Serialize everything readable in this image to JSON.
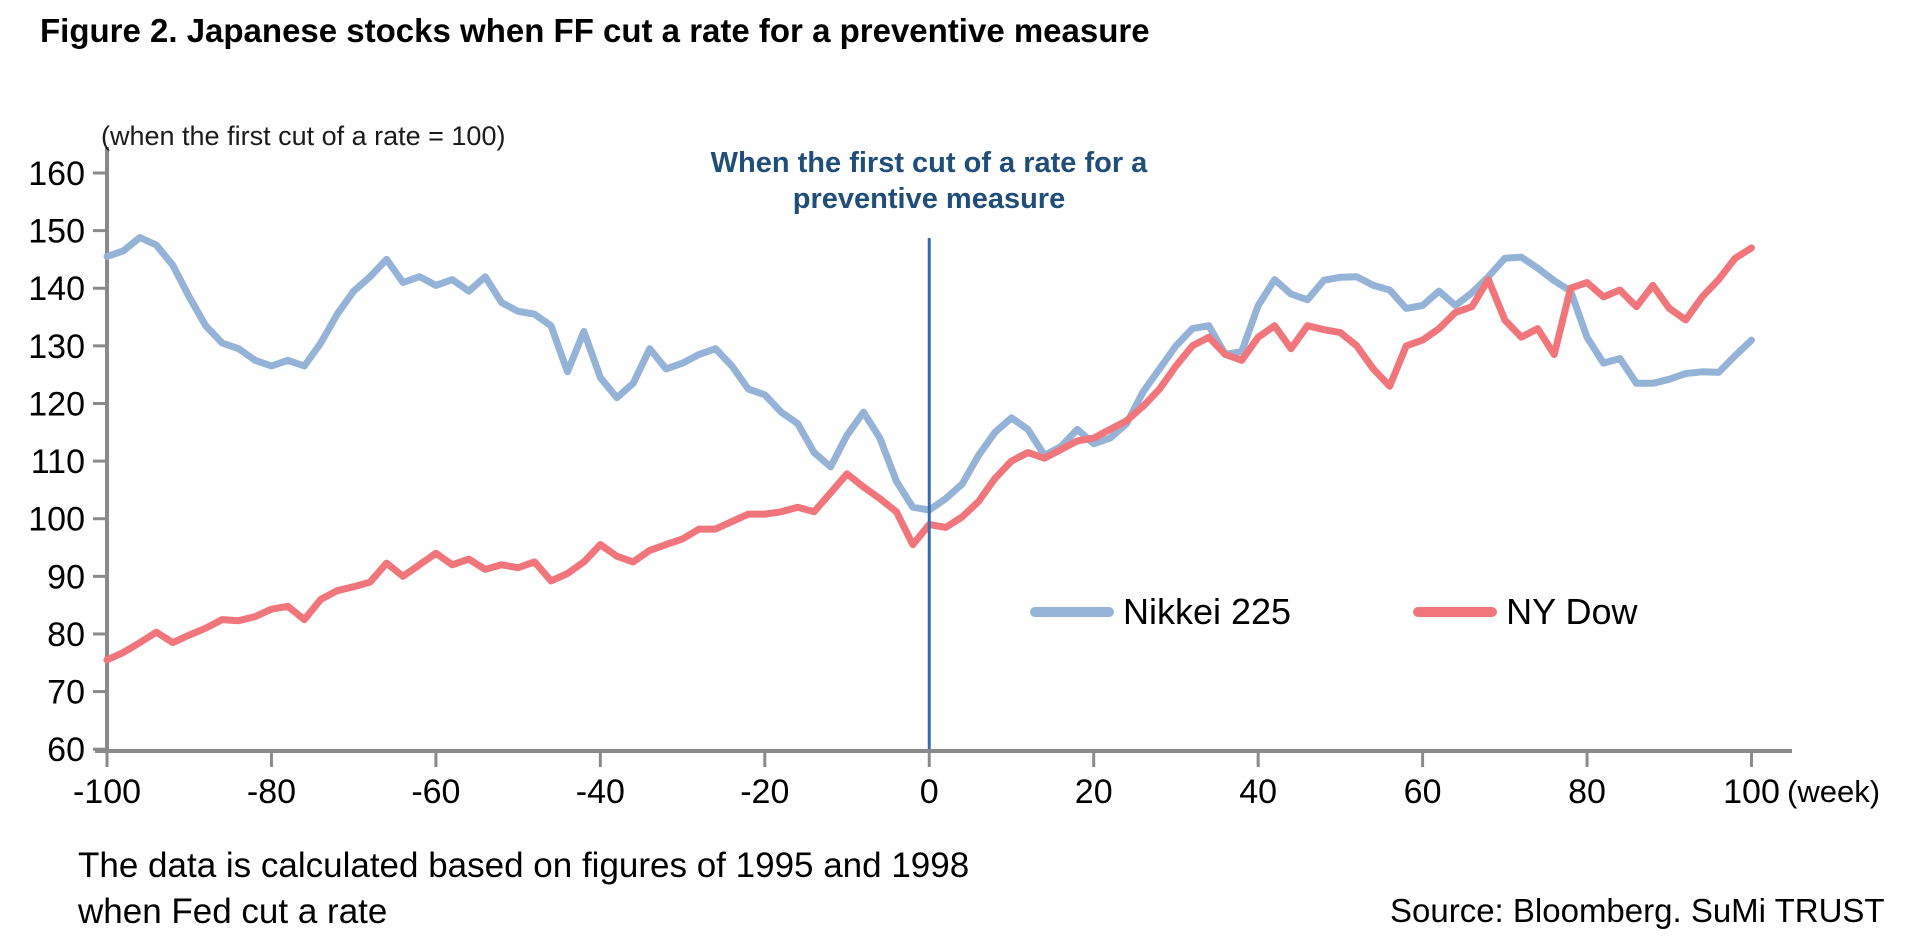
{
  "title": "Figure 2. Japanese stocks when FF cut a rate for a preventive measure",
  "axis_note": "(when the first cut of a rate  = 100)",
  "annotation": {
    "line1": "When the first cut of a rate for a",
    "line2": "preventive measure",
    "color": "#1F4E79"
  },
  "legend": {
    "items": [
      {
        "label": "Nikkei 225",
        "color": "#95B3D7"
      },
      {
        "label": "NY Dow",
        "color": "#F1767C"
      }
    ]
  },
  "footnote": {
    "line1": "The data is calculated based on figures of 1995 and 1998",
    "line2": "when Fed cut a rate"
  },
  "source": "Source: Bloomberg. SuMi TRUST",
  "chart_data": {
    "type": "line",
    "title": "Figure 2. Japanese stocks when FF cut a rate for a preventive measure",
    "xlabel": "(week)",
    "ylabel": "(when the first cut of a rate = 100)",
    "xlim": [
      -100,
      100
    ],
    "ylim": [
      60,
      160
    ],
    "grid": false,
    "legend_position": "inside-center-right",
    "axis_color": "#8A8A8A",
    "event_line_x": 0,
    "event_line_color": "#3B6CA8",
    "y_ticks": [
      160,
      150,
      140,
      130,
      120,
      110,
      100,
      90,
      80,
      70,
      60
    ],
    "x_ticks": [
      -100,
      -80,
      -60,
      -40,
      -20,
      0,
      20,
      40,
      60,
      80,
      100
    ],
    "x": [
      -100,
      -98,
      -96,
      -94,
      -92,
      -90,
      -88,
      -86,
      -84,
      -82,
      -80,
      -78,
      -76,
      -74,
      -72,
      -70,
      -68,
      -66,
      -64,
      -62,
      -60,
      -58,
      -56,
      -54,
      -52,
      -50,
      -48,
      -46,
      -44,
      -42,
      -40,
      -38,
      -36,
      -34,
      -32,
      -30,
      -28,
      -26,
      -24,
      -22,
      -20,
      -18,
      -16,
      -14,
      -12,
      -10,
      -8,
      -6,
      -4,
      -2,
      0,
      2,
      4,
      6,
      8,
      10,
      12,
      14,
      16,
      18,
      20,
      22,
      24,
      26,
      28,
      30,
      32,
      34,
      36,
      38,
      40,
      42,
      44,
      46,
      48,
      50,
      52,
      54,
      56,
      58,
      60,
      62,
      64,
      66,
      68,
      70,
      72,
      74,
      76,
      78,
      80,
      82,
      84,
      86,
      88,
      90,
      92,
      94,
      96,
      98,
      100
    ],
    "series": [
      {
        "name": "Nikkei 225",
        "color": "#95B3D7",
        "values": [
          145.5,
          146.5,
          148.8,
          147.5,
          144.0,
          138.5,
          133.5,
          130.5,
          129.5,
          127.5,
          126.5,
          127.5,
          126.5,
          130.5,
          135.5,
          139.5,
          142.0,
          145.0,
          141.0,
          142.0,
          140.5,
          141.5,
          139.5,
          142.0,
          137.5,
          136.0,
          135.5,
          133.5,
          125.5,
          132.5,
          124.5,
          121.0,
          123.5,
          129.5,
          126.0,
          127.0,
          128.5,
          129.5,
          126.5,
          122.5,
          121.5,
          118.5,
          116.5,
          111.5,
          109.0,
          114.5,
          118.5,
          114.0,
          106.5,
          102.0,
          101.5,
          103.5,
          106.0,
          111.0,
          115.0,
          117.5,
          115.5,
          111.0,
          112.5,
          115.5,
          113.0,
          114.0,
          116.5,
          122.0,
          126.0,
          130.0,
          133.0,
          133.5,
          128.5,
          129.0,
          137.0,
          141.5,
          139.0,
          138.0,
          141.4,
          141.9,
          142.0,
          140.5,
          139.7,
          136.5,
          137.0,
          139.5,
          137.0,
          139.2,
          142.0,
          145.2,
          145.4,
          143.5,
          141.3,
          139.5,
          131.5,
          127.0,
          127.8,
          123.5,
          123.5,
          124.2,
          125.2,
          125.5,
          125.4,
          128.3,
          131.0
        ]
      },
      {
        "name": "NY Dow",
        "color": "#F1767C",
        "values": [
          75.5,
          76.8,
          78.5,
          80.3,
          78.5,
          79.8,
          81.0,
          82.5,
          82.3,
          83.0,
          84.3,
          84.8,
          82.5,
          86.0,
          87.5,
          88.2,
          89.0,
          92.3,
          90.0,
          92.0,
          94.0,
          92.0,
          93.0,
          91.2,
          92.0,
          91.5,
          92.5,
          89.2,
          90.5,
          92.5,
          95.5,
          93.5,
          92.5,
          94.5,
          95.5,
          96.5,
          98.2,
          98.2,
          99.5,
          100.8,
          100.8,
          101.2,
          102.0,
          101.2,
          104.5,
          107.8,
          105.5,
          103.5,
          101.2,
          95.5,
          99.0,
          98.5,
          100.3,
          103.0,
          107.0,
          110.0,
          111.5,
          110.5,
          112.0,
          113.5,
          114.0,
          115.5,
          117.0,
          119.5,
          122.5,
          126.5,
          130.0,
          131.5,
          128.5,
          127.5,
          131.5,
          133.5,
          129.5,
          133.5,
          132.8,
          132.3,
          130.0,
          126.0,
          123.0,
          130.0,
          131.0,
          133.0,
          135.8,
          136.8,
          141.5,
          134.5,
          131.5,
          133.0,
          128.5,
          140.0,
          141.0,
          138.5,
          139.7,
          136.8,
          140.5,
          136.5,
          134.5,
          138.5,
          141.5,
          145.2,
          147.0
        ]
      }
    ]
  }
}
